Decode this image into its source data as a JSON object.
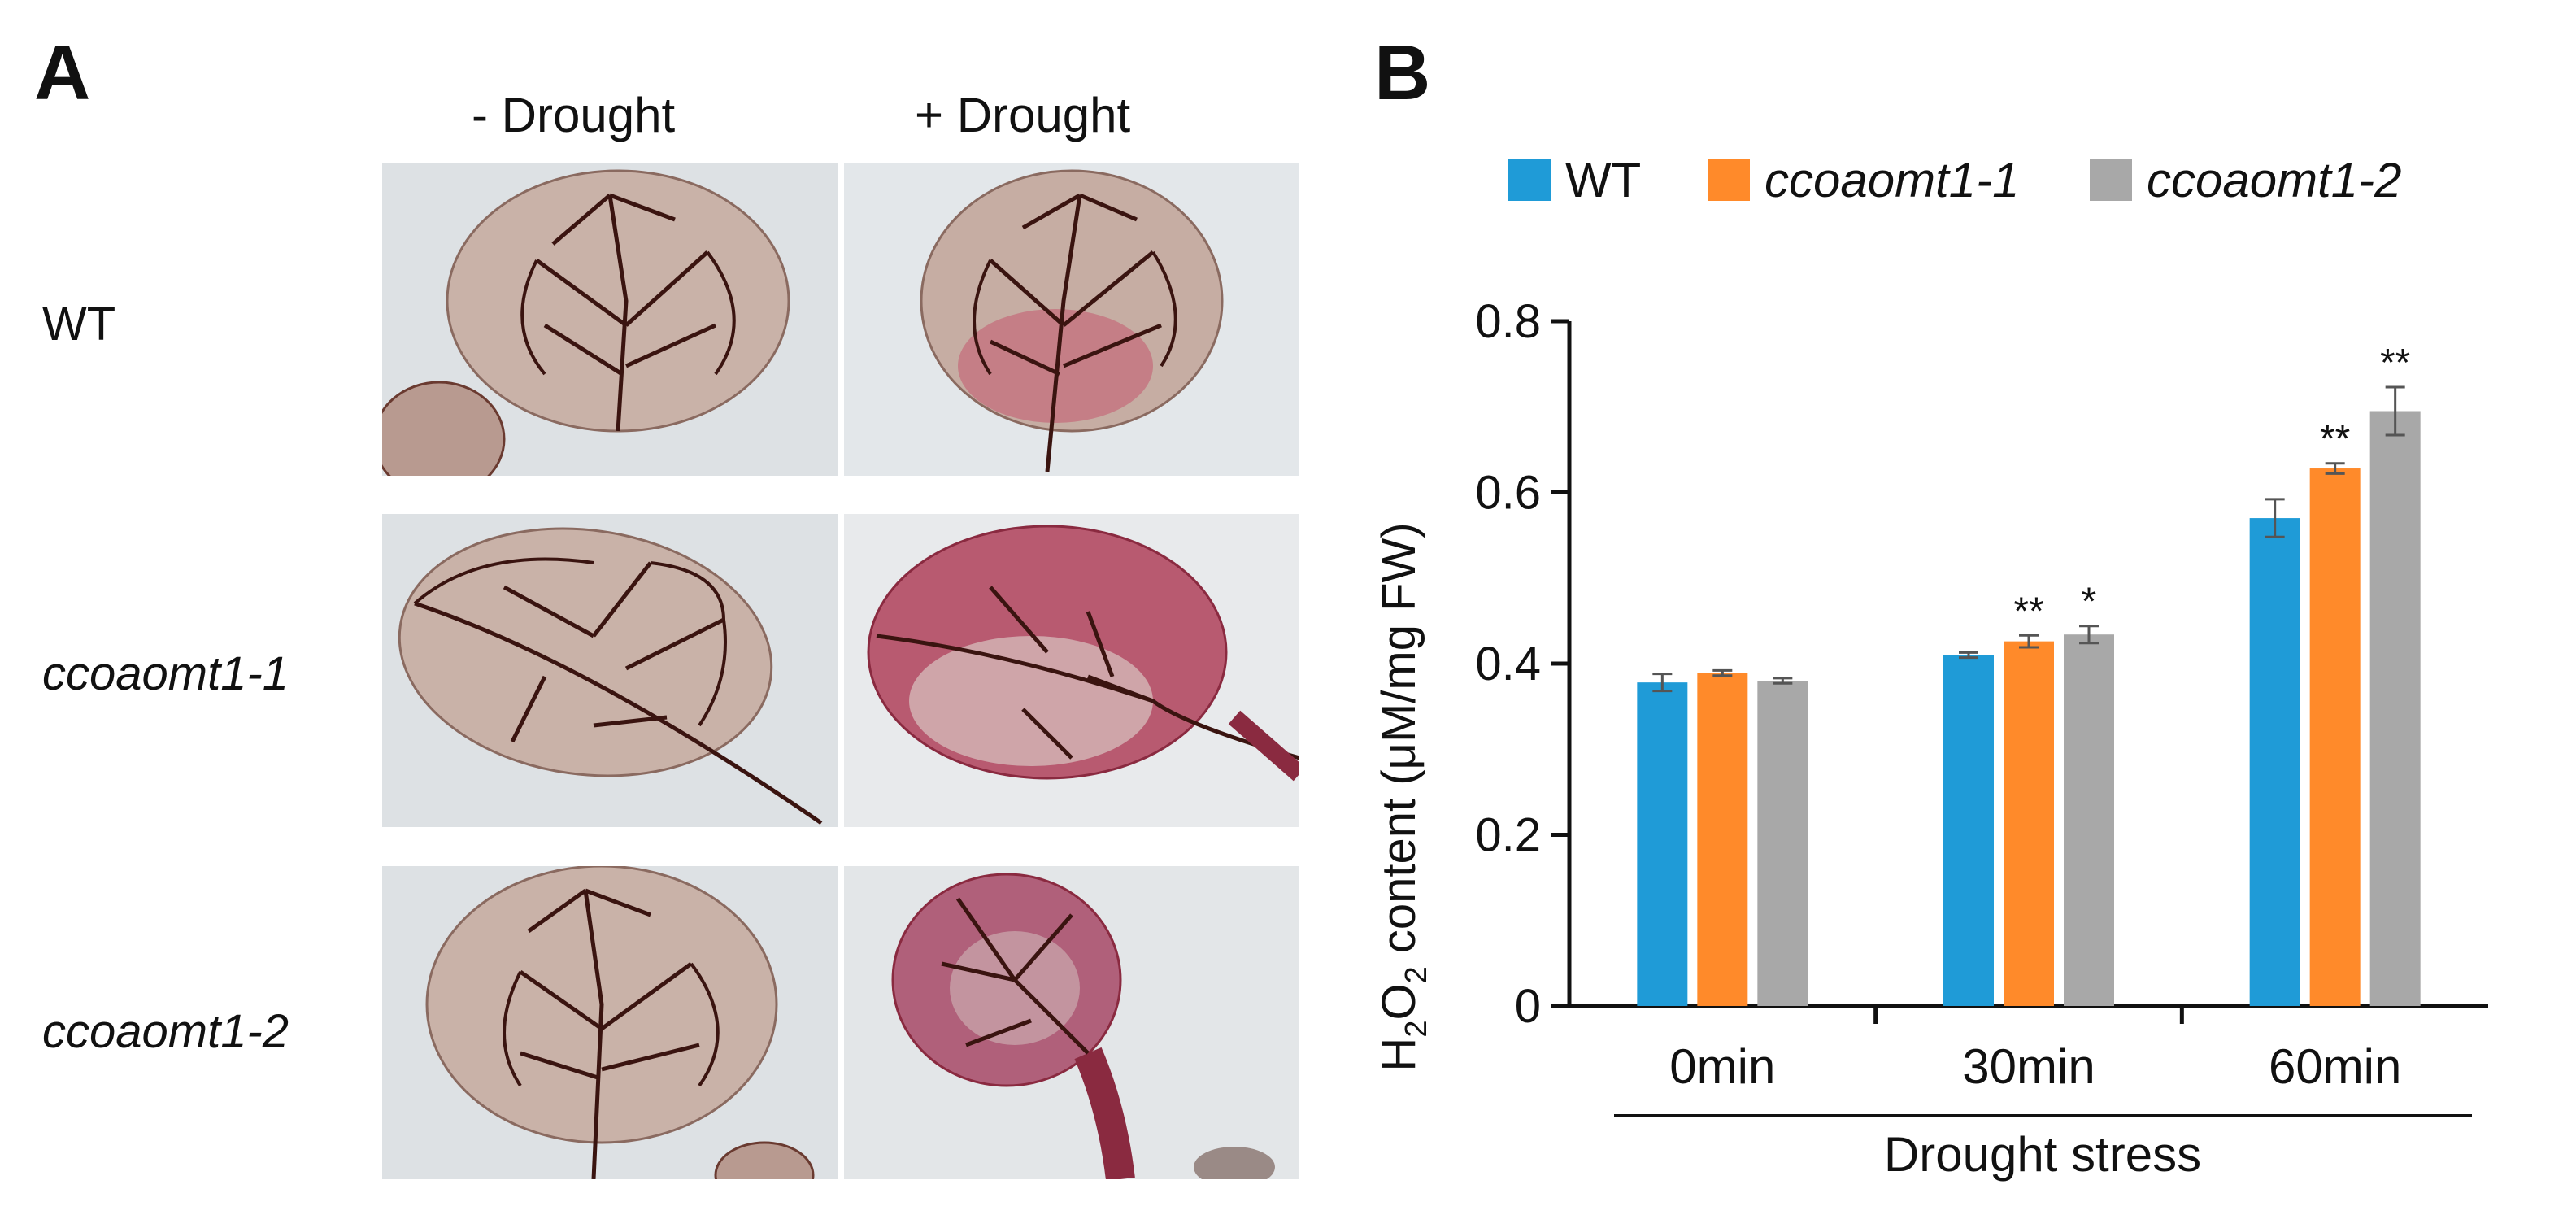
{
  "panels": {
    "a_label": "A",
    "b_label": "B"
  },
  "photo_grid": {
    "columns": [
      "- Drought",
      "+ Drought"
    ],
    "rows": [
      "WT",
      "ccoaomt1-1",
      "ccoaomt1-2"
    ]
  },
  "colors": {
    "WT": "#1f9bd7",
    "ccoaomt1-1": "#ff8a2a",
    "ccoaomt1-2": "#a8a8a8",
    "leaf_tissue": "#c9b2a8",
    "leaf_vein": "#3a1410",
    "stain": "#c2284f",
    "background_photo": "#dfe3e6"
  },
  "chart_data": {
    "type": "bar",
    "title": "",
    "xlabel": "Drought stress",
    "ylabel_parts": [
      "H",
      "2",
      "O",
      "2",
      " content (μM/mg FW)"
    ],
    "categories": [
      "0min",
      "30min",
      "60min"
    ],
    "ylim": [
      0,
      0.8
    ],
    "yticks": [
      0,
      0.2,
      0.4,
      0.6,
      0.8
    ],
    "ytick_labels": [
      "0",
      "0.2",
      "0.4",
      "0.6",
      "0.8"
    ],
    "series": [
      {
        "name": "WT",
        "italic": false,
        "values": [
          0.378,
          0.41,
          0.57
        ],
        "errors": [
          0.01,
          0.003,
          0.022
        ],
        "significance": [
          "",
          "",
          ""
        ]
      },
      {
        "name": "ccoaomt1-1",
        "italic": true,
        "values": [
          0.389,
          0.426,
          0.628
        ],
        "errors": [
          0.003,
          0.007,
          0.006
        ],
        "significance": [
          "",
          "**",
          "**"
        ]
      },
      {
        "name": "ccoaomt1-2",
        "italic": true,
        "values": [
          0.38,
          0.434,
          0.695
        ],
        "errors": [
          0.003,
          0.01,
          0.028
        ],
        "significance": [
          "",
          "*",
          "**"
        ]
      }
    ],
    "legend_position": "top"
  }
}
